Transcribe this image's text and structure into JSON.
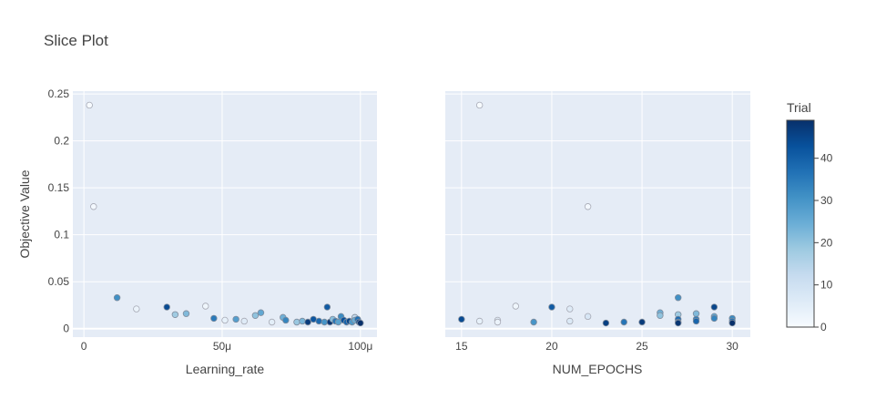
{
  "chart_data": {
    "type": "scatter",
    "title": "Slice Plot",
    "ylabel": "Objective Value",
    "y_ticks": [
      "0",
      "0.05",
      "0.1",
      "0.15",
      "0.2",
      "0.25"
    ],
    "ylim": [
      -0.009,
      0.253
    ],
    "colorbar": {
      "title": "Trial",
      "range": [
        0,
        49
      ],
      "ticks": [
        "0",
        "10",
        "20",
        "30",
        "40"
      ],
      "colorscale": [
        "#f7fbff",
        "#deebf7",
        "#c6dbef",
        "#9ecae1",
        "#6baed6",
        "#4292c6",
        "#2171b5",
        "#08519c",
        "#08306b"
      ]
    },
    "panels": [
      {
        "xlabel": "Learning_rate",
        "xlim": [
          -4e-06,
          0.000106
        ],
        "x_ticks": [
          {
            "value": 0,
            "label": "0"
          },
          {
            "value": 5e-05,
            "label": "50μ"
          },
          {
            "value": 0.0001,
            "label": "100μ"
          }
        ],
        "points": [
          {
            "x": 2e-06,
            "y": 0.238,
            "trial": 0
          },
          {
            "x": 3.5e-06,
            "y": 0.13,
            "trial": 1
          },
          {
            "x": 1.2e-05,
            "y": 0.033,
            "trial": 31
          },
          {
            "x": 1.9e-05,
            "y": 0.021,
            "trial": 3
          },
          {
            "x": 3e-05,
            "y": 0.023,
            "trial": 44
          },
          {
            "x": 3.3e-05,
            "y": 0.015,
            "trial": 18
          },
          {
            "x": 3.7e-05,
            "y": 0.016,
            "trial": 22
          },
          {
            "x": 4.4e-05,
            "y": 0.024,
            "trial": 2
          },
          {
            "x": 4.7e-05,
            "y": 0.011,
            "trial": 35
          },
          {
            "x": 5.1e-05,
            "y": 0.009,
            "trial": 4
          },
          {
            "x": 5.5e-05,
            "y": 0.01,
            "trial": 28
          },
          {
            "x": 5.8e-05,
            "y": 0.008,
            "trial": 6
          },
          {
            "x": 6.2e-05,
            "y": 0.014,
            "trial": 20
          },
          {
            "x": 6.4e-05,
            "y": 0.017,
            "trial": 26
          },
          {
            "x": 6.8e-05,
            "y": 0.007,
            "trial": 5
          },
          {
            "x": 7.2e-05,
            "y": 0.012,
            "trial": 24
          },
          {
            "x": 7.3e-05,
            "y": 0.009,
            "trial": 33
          },
          {
            "x": 7.7e-05,
            "y": 0.007,
            "trial": 19
          },
          {
            "x": 7.9e-05,
            "y": 0.008,
            "trial": 23
          },
          {
            "x": 8.1e-05,
            "y": 0.007,
            "trial": 47
          },
          {
            "x": 8.3e-05,
            "y": 0.01,
            "trial": 42
          },
          {
            "x": 8.5e-05,
            "y": 0.008,
            "trial": 38
          },
          {
            "x": 8.7e-05,
            "y": 0.007,
            "trial": 30
          },
          {
            "x": 8.8e-05,
            "y": 0.023,
            "trial": 41
          },
          {
            "x": 8.9e-05,
            "y": 0.007,
            "trial": 48
          },
          {
            "x": 9e-05,
            "y": 0.01,
            "trial": 21
          },
          {
            "x": 9.1e-05,
            "y": 0.008,
            "trial": 36
          },
          {
            "x": 9.2e-05,
            "y": 0.007,
            "trial": 27
          },
          {
            "x": 9.3e-05,
            "y": 0.013,
            "trial": 32
          },
          {
            "x": 9.4e-05,
            "y": 0.009,
            "trial": 43
          },
          {
            "x": 9.5e-05,
            "y": 0.007,
            "trial": 39
          },
          {
            "x": 9.6e-05,
            "y": 0.008,
            "trial": 45
          },
          {
            "x": 9.7e-05,
            "y": 0.007,
            "trial": 29
          },
          {
            "x": 9.8e-05,
            "y": 0.012,
            "trial": 12
          },
          {
            "x": 9.8e-05,
            "y": 0.009,
            "trial": 25
          },
          {
            "x": 9.9e-05,
            "y": 0.01,
            "trial": 37
          },
          {
            "x": 9.95e-05,
            "y": 0.007,
            "trial": 46
          },
          {
            "x": 0.0001,
            "y": 0.006,
            "trial": 49
          }
        ]
      },
      {
        "xlabel": "NUM_EPOCHS",
        "xlim": [
          14.1,
          31
        ],
        "x_ticks": [
          {
            "value": 15,
            "label": "15"
          },
          {
            "value": 20,
            "label": "20"
          },
          {
            "value": 25,
            "label": "25"
          },
          {
            "value": 30,
            "label": "30"
          }
        ],
        "points": [
          {
            "x": 15,
            "y": 0.01,
            "trial": 44
          },
          {
            "x": 16,
            "y": 0.238,
            "trial": 0
          },
          {
            "x": 16,
            "y": 0.008,
            "trial": 4
          },
          {
            "x": 17,
            "y": 0.009,
            "trial": 5
          },
          {
            "x": 17,
            "y": 0.007,
            "trial": 3
          },
          {
            "x": 18,
            "y": 0.024,
            "trial": 2
          },
          {
            "x": 19,
            "y": 0.007,
            "trial": 30
          },
          {
            "x": 20,
            "y": 0.023,
            "trial": 41
          },
          {
            "x": 21,
            "y": 0.021,
            "trial": 6
          },
          {
            "x": 21,
            "y": 0.008,
            "trial": 7
          },
          {
            "x": 22,
            "y": 0.13,
            "trial": 1
          },
          {
            "x": 22,
            "y": 0.013,
            "trial": 8
          },
          {
            "x": 23,
            "y": 0.006,
            "trial": 46
          },
          {
            "x": 24,
            "y": 0.007,
            "trial": 36
          },
          {
            "x": 25,
            "y": 0.007,
            "trial": 47
          },
          {
            "x": 26,
            "y": 0.017,
            "trial": 24
          },
          {
            "x": 26,
            "y": 0.014,
            "trial": 20
          },
          {
            "x": 27,
            "y": 0.033,
            "trial": 31
          },
          {
            "x": 27,
            "y": 0.015,
            "trial": 18
          },
          {
            "x": 27,
            "y": 0.01,
            "trial": 38
          },
          {
            "x": 27,
            "y": 0.007,
            "trial": 42
          },
          {
            "x": 27,
            "y": 0.006,
            "trial": 48
          },
          {
            "x": 28,
            "y": 0.016,
            "trial": 22
          },
          {
            "x": 28,
            "y": 0.01,
            "trial": 35
          },
          {
            "x": 28,
            "y": 0.008,
            "trial": 39
          },
          {
            "x": 29,
            "y": 0.023,
            "trial": 45
          },
          {
            "x": 29,
            "y": 0.013,
            "trial": 26
          },
          {
            "x": 29,
            "y": 0.011,
            "trial": 33
          },
          {
            "x": 30,
            "y": 0.011,
            "trial": 32
          },
          {
            "x": 30,
            "y": 0.008,
            "trial": 37
          },
          {
            "x": 30,
            "y": 0.006,
            "trial": 49
          }
        ]
      }
    ]
  }
}
